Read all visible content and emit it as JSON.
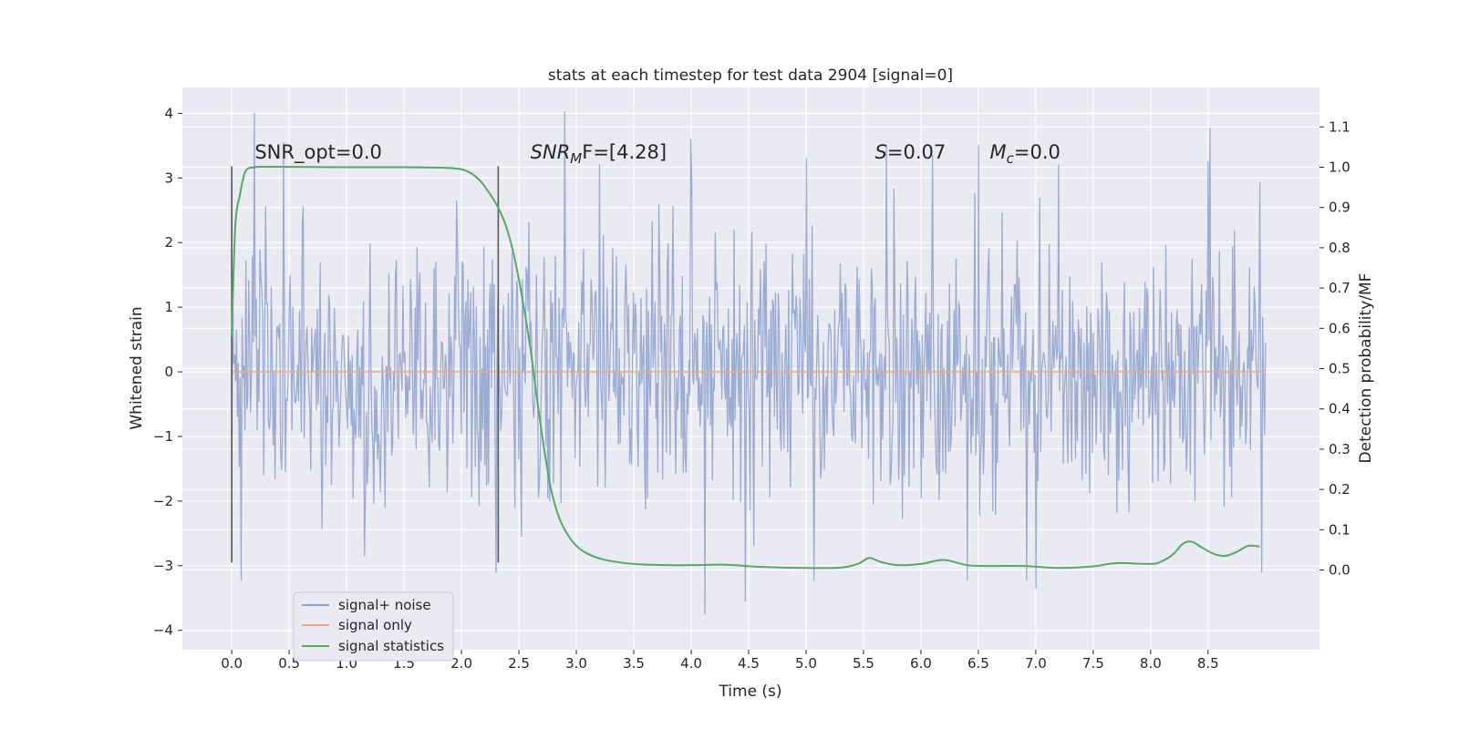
{
  "chart_data": {
    "type": "line",
    "title": "stats at each timestep for test data 2904 [signal=0]",
    "xlabel": "Time (s)",
    "ylabel_left": "Whitened strain",
    "ylabel_right": "Detection probability/MF",
    "xlim": [
      -0.43,
      9.47
    ],
    "ylim_left": [
      -4.3,
      4.4
    ],
    "ylim_right": [
      -0.198,
      1.198
    ],
    "x_ticks": [
      0.0,
      0.5,
      1.0,
      1.5,
      2.0,
      2.5,
      3.0,
      3.5,
      4.0,
      4.5,
      5.0,
      5.5,
      6.0,
      6.5,
      7.0,
      7.5,
      8.0,
      8.5
    ],
    "x_tick_labels": [
      "0.0",
      "0.5",
      "1.0",
      "1.5",
      "2.0",
      "2.5",
      "3.0",
      "3.5",
      "4.0",
      "4.5",
      "5.0",
      "5.5",
      "6.0",
      "6.5",
      "7.0",
      "7.5",
      "8.0",
      "8.5"
    ],
    "y_ticks_left": [
      4,
      3,
      2,
      1,
      0,
      -1,
      -2,
      -3,
      -4
    ],
    "y_tick_labels_left": [
      "4",
      "3",
      "2",
      "1",
      "0",
      "−1",
      "−2",
      "−3",
      "−4"
    ],
    "y_ticks_right": [
      1.1,
      1.0,
      0.9,
      0.8,
      0.7,
      0.6,
      0.5,
      0.4,
      0.3,
      0.2,
      0.1,
      0.0
    ],
    "y_tick_labels_right": [
      "1.1",
      "1.0",
      "0.9",
      "0.8",
      "0.7",
      "0.6",
      "0.5",
      "0.4",
      "0.3",
      "0.2",
      "0.1",
      "0.0"
    ],
    "grid": true,
    "vlines": [
      {
        "x": 0.0,
        "ymin": -2.95,
        "ymax": 3.18
      },
      {
        "x": 2.32,
        "ymin": -2.95,
        "ymax": 3.18
      }
    ],
    "annotations": [
      {
        "x": 0.2,
        "y": 3.3,
        "text": "SNR_opt=0.0",
        "italic_prefix": ""
      },
      {
        "x": 2.6,
        "y": 3.3,
        "text": "SNR",
        "sub": "M",
        "rest": "F=[4.28]",
        "italic_prefix": "SNR"
      },
      {
        "x": 5.6,
        "y": 3.3,
        "text": "S",
        "rest": "=0.07",
        "italic_prefix": "S"
      },
      {
        "x": 6.6,
        "y": 3.3,
        "text": "M",
        "sub": "c",
        "rest": "=0.0",
        "italic_prefix": "M"
      }
    ],
    "legend": {
      "position": "lower-left",
      "entries": [
        {
          "label": "signal+ noise",
          "color": "#8da0cb"
        },
        {
          "label": "signal only",
          "color": "#e8a98e"
        },
        {
          "label": "signal statistics",
          "color": "#55a868"
        }
      ]
    },
    "series": [
      {
        "name": "signal+ noise",
        "color": "#8da0cb",
        "x_range": [
          0.0,
          9.0
        ],
        "n_points": 1100,
        "sigma": 1.0,
        "min": -3.75,
        "max": 4.02,
        "peaks": [
          [
            0.2,
            4.0
          ],
          [
            0.45,
            3.55
          ],
          [
            2.9,
            4.02
          ],
          [
            3.2,
            3.2
          ],
          [
            4.0,
            3.6
          ],
          [
            5.0,
            3.3
          ],
          [
            5.7,
            3.5
          ],
          [
            6.1,
            3.35
          ],
          [
            6.5,
            3.5
          ],
          [
            7.2,
            3.2
          ],
          [
            8.5,
            3.25
          ],
          [
            8.95,
            2.92
          ]
        ],
        "troughs": [
          [
            0.08,
            -3.22
          ],
          [
            2.3,
            -3.1
          ],
          [
            4.12,
            -3.75
          ],
          [
            4.47,
            -3.55
          ],
          [
            5.07,
            -3.22
          ],
          [
            6.4,
            -3.22
          ],
          [
            7.0,
            -3.35
          ],
          [
            8.97,
            -3.1
          ]
        ]
      },
      {
        "name": "signal only",
        "color": "#e8a98e",
        "x": [
          0.0,
          9.0
        ],
        "y": [
          0.0,
          0.0
        ]
      },
      {
        "name": "signal statistics",
        "axis": "right",
        "color": "#55a868",
        "x": [
          0.0,
          0.03,
          0.07,
          0.12,
          0.2,
          0.3,
          0.5,
          1.0,
          1.5,
          1.9,
          2.05,
          2.15,
          2.22,
          2.3,
          2.38,
          2.45,
          2.52,
          2.6,
          2.66,
          2.72,
          2.78,
          2.85,
          2.92,
          3.0,
          3.1,
          3.25,
          3.5,
          3.8,
          4.0,
          4.3,
          4.6,
          5.0,
          5.3,
          5.45,
          5.55,
          5.65,
          5.8,
          6.0,
          6.2,
          6.4,
          6.6,
          6.9,
          7.2,
          7.5,
          7.7,
          8.0,
          8.1,
          8.2,
          8.28,
          8.36,
          8.45,
          8.55,
          8.65,
          8.75,
          8.85,
          8.95
        ],
        "y": [
          0.58,
          0.85,
          0.93,
          0.99,
          1.0,
          1.001,
          1.001,
          1.0,
          1.0,
          0.998,
          0.99,
          0.97,
          0.945,
          0.91,
          0.86,
          0.79,
          0.69,
          0.55,
          0.42,
          0.3,
          0.2,
          0.13,
          0.09,
          0.06,
          0.04,
          0.025,
          0.015,
          0.012,
          0.012,
          0.013,
          0.008,
          0.005,
          0.006,
          0.015,
          0.03,
          0.02,
          0.012,
          0.015,
          0.025,
          0.012,
          0.01,
          0.01,
          0.005,
          0.009,
          0.017,
          0.015,
          0.022,
          0.04,
          0.065,
          0.07,
          0.055,
          0.04,
          0.035,
          0.045,
          0.06,
          0.058
        ]
      }
    ]
  }
}
